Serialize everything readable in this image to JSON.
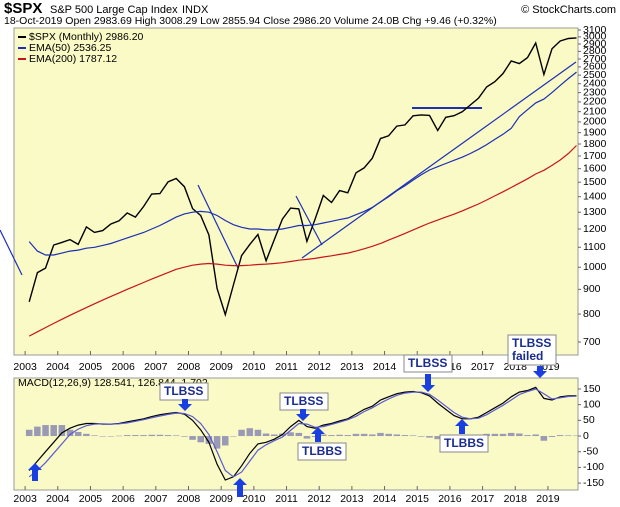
{
  "header": {
    "symbol": "$SPX",
    "name": "S&P 500 Large Cap Index",
    "exchange": "INDX",
    "copyright": "© StockCharts.com",
    "quote": "18-Oct-2019   Open 2983.69  High 3008.29  Low 2855.94  Close 2986.20  Volume 24.0B  Chg +9.46 (+0.32%)"
  },
  "chart_data": [
    {
      "type": "line",
      "log_scale": true,
      "grid": false,
      "x": [
        2003.125,
        2003.375,
        2003.625,
        2003.875,
        2004.125,
        2004.375,
        2004.625,
        2004.875,
        2005.125,
        2005.375,
        2005.625,
        2005.875,
        2006.125,
        2006.375,
        2006.625,
        2006.875,
        2007.125,
        2007.375,
        2007.625,
        2007.875,
        2008.125,
        2008.375,
        2008.625,
        2008.875,
        2009.125,
        2009.375,
        2009.625,
        2009.875,
        2010.125,
        2010.375,
        2010.625,
        2010.875,
        2011.125,
        2011.375,
        2011.625,
        2011.875,
        2012.125,
        2012.375,
        2012.625,
        2012.875,
        2013.125,
        2013.375,
        2013.625,
        2013.875,
        2014.125,
        2014.375,
        2014.625,
        2014.875,
        2015.125,
        2015.375,
        2015.625,
        2015.875,
        2016.125,
        2016.375,
        2016.625,
        2016.875,
        2017.125,
        2017.375,
        2017.625,
        2017.875,
        2018.125,
        2018.375,
        2018.625,
        2018.875,
        2019.125,
        2019.375,
        2019.625,
        2019.875
      ],
      "series": [
        {
          "name": "$SPX (Monthly) 2986.20",
          "color": "#000000",
          "values": [
            848,
            975,
            996,
            1112,
            1126,
            1141,
            1115,
            1212,
            1181,
            1191,
            1229,
            1248,
            1295,
            1270,
            1336,
            1418,
            1421,
            1503,
            1527,
            1468,
            1323,
            1280,
            1166,
            903,
            798,
            919,
            1057,
            1115,
            1169,
            1031,
            1141,
            1258,
            1326,
            1321,
            1131,
            1258,
            1408,
            1362,
            1441,
            1426,
            1569,
            1606,
            1682,
            1848,
            1872,
            1960,
            1972,
            2059,
            2068,
            2063,
            1920,
            2044,
            2060,
            2099,
            2168,
            2239,
            2363,
            2423,
            2519,
            2674,
            2641,
            2718,
            2914,
            2507,
            2834,
            2942,
            2977,
            2986
          ]
        },
        {
          "name": "EMA(50) 2536.25",
          "color": "#1c2fb5",
          "values": [
            1130,
            1080,
            1060,
            1060,
            1070,
            1080,
            1085,
            1095,
            1100,
            1110,
            1120,
            1135,
            1150,
            1165,
            1180,
            1200,
            1220,
            1245,
            1270,
            1290,
            1300,
            1305,
            1300,
            1280,
            1250,
            1225,
            1210,
            1200,
            1200,
            1195,
            1195,
            1200,
            1210,
            1220,
            1220,
            1225,
            1235,
            1245,
            1255,
            1265,
            1285,
            1305,
            1330,
            1365,
            1400,
            1440,
            1475,
            1515,
            1555,
            1590,
            1615,
            1640,
            1665,
            1690,
            1720,
            1755,
            1795,
            1840,
            1885,
            1940,
            2050,
            2120,
            2190,
            2230,
            2300,
            2380,
            2460,
            2536
          ]
        },
        {
          "name": "EMA(200) 1787.12",
          "color": "#c8141e",
          "values": [
            720,
            735,
            750,
            765,
            780,
            795,
            810,
            825,
            840,
            855,
            870,
            885,
            900,
            915,
            930,
            945,
            960,
            975,
            990,
            1000,
            1010,
            1015,
            1018,
            1015,
            1010,
            1008,
            1008,
            1010,
            1013,
            1015,
            1018,
            1022,
            1028,
            1034,
            1038,
            1043,
            1050,
            1056,
            1063,
            1070,
            1080,
            1092,
            1105,
            1120,
            1138,
            1156,
            1175,
            1195,
            1215,
            1235,
            1252,
            1270,
            1288,
            1308,
            1330,
            1352,
            1378,
            1405,
            1433,
            1463,
            1493,
            1525,
            1560,
            1588,
            1625,
            1668,
            1720,
            1787
          ]
        }
      ],
      "xlim": [
        2002.66,
        2019.92
      ],
      "xticks": [
        2003,
        2004,
        2005,
        2006,
        2007,
        2008,
        2009,
        2010,
        2011,
        2012,
        2013,
        2014,
        2015,
        2016,
        2017,
        2018,
        2019
      ],
      "ylim": [
        658,
        3130
      ],
      "yticks": [
        700,
        800,
        900,
        1000,
        1100,
        1200,
        1300,
        1400,
        1500,
        1600,
        1700,
        1800,
        1900,
        2000,
        2100,
        2200,
        2300,
        2400,
        2500,
        2600,
        2700,
        2800,
        2900,
        3000,
        3100
      ]
    },
    {
      "type": "line",
      "grid": false,
      "label": "MACD(12,26,9) 128.541, 126.844, 1.702",
      "x": [
        2003.125,
        2003.375,
        2003.625,
        2003.875,
        2004.125,
        2004.375,
        2004.625,
        2004.875,
        2005.125,
        2005.375,
        2005.625,
        2005.875,
        2006.125,
        2006.375,
        2006.625,
        2006.875,
        2007.125,
        2007.375,
        2007.625,
        2007.875,
        2008.125,
        2008.375,
        2008.625,
        2008.875,
        2009.125,
        2009.375,
        2009.625,
        2009.875,
        2010.125,
        2010.375,
        2010.625,
        2010.875,
        2011.125,
        2011.375,
        2011.625,
        2011.875,
        2012.125,
        2012.375,
        2012.625,
        2012.875,
        2013.125,
        2013.375,
        2013.625,
        2013.875,
        2014.125,
        2014.375,
        2014.625,
        2014.875,
        2015.125,
        2015.375,
        2015.625,
        2015.875,
        2016.125,
        2016.375,
        2016.625,
        2016.875,
        2017.125,
        2017.375,
        2017.625,
        2017.875,
        2018.125,
        2018.375,
        2018.625,
        2018.875,
        2019.125,
        2019.375,
        2019.625,
        2019.875
      ],
      "series": [
        {
          "type": "bar",
          "color": "#9a9ab4",
          "values": [
            20,
            30,
            35,
            35,
            35,
            20,
            13,
            7,
            2,
            -1,
            0,
            1,
            3,
            3,
            3,
            4,
            4,
            3,
            2,
            -2,
            -12,
            -20,
            -25,
            -40,
            -30,
            0,
            20,
            25,
            20,
            8,
            5,
            8,
            12,
            10,
            -8,
            -3,
            5,
            3,
            4,
            3,
            7,
            7,
            5,
            10,
            7,
            5,
            3,
            2,
            -2,
            -5,
            -10,
            -10,
            -10,
            -5,
            0,
            3,
            7,
            7,
            7,
            10,
            8,
            3,
            5,
            -15,
            -3,
            3,
            2,
            1.702
          ]
        },
        {
          "type": "line",
          "color": "#000000",
          "values": [
            -110,
            -80,
            -50,
            -20,
            10,
            25,
            35,
            40,
            40,
            38,
            38,
            40,
            45,
            50,
            55,
            62,
            68,
            72,
            75,
            70,
            50,
            20,
            -20,
            -90,
            -140,
            -130,
            -95,
            -55,
            -25,
            -20,
            -10,
            5,
            30,
            50,
            30,
            25,
            35,
            40,
            48,
            55,
            70,
            85,
            95,
            115,
            125,
            135,
            140,
            142,
            138,
            128,
            105,
            85,
            65,
            55,
            55,
            60,
            75,
            90,
            105,
            125,
            140,
            145,
            155,
            120,
            115,
            125,
            128,
            128.541
          ]
        },
        {
          "type": "line",
          "color": "#5a5ad2",
          "values": [
            -130,
            -110,
            -85,
            -55,
            -25,
            5,
            22,
            33,
            38,
            39,
            38,
            39,
            42,
            47,
            52,
            58,
            64,
            69,
            73,
            72,
            62,
            40,
            5,
            -50,
            -110,
            -130,
            -115,
            -80,
            -45,
            -28,
            -15,
            -3,
            18,
            40,
            38,
            28,
            30,
            37,
            44,
            52,
            63,
            78,
            90,
            105,
            118,
            130,
            137,
            140,
            140,
            133,
            115,
            95,
            75,
            60,
            55,
            57,
            68,
            83,
            98,
            115,
            132,
            142,
            150,
            135,
            118,
            122,
            126,
            126.844
          ]
        }
      ],
      "annotations": [
        [
          "TLBSS"
        ],
        [
          "TLBSS"
        ],
        [
          "TLBSS"
        ],
        [
          "TLBSS",
          "failed"
        ],
        [
          "TLBBS"
        ],
        [
          "TLBBS"
        ]
      ],
      "xlim": [
        2002.66,
        2019.92
      ],
      "xticks": [
        2003,
        2004,
        2005,
        2006,
        2007,
        2008,
        2009,
        2010,
        2011,
        2012,
        2013,
        2014,
        2015,
        2016,
        2017,
        2018,
        2019
      ],
      "ylim": [
        -172,
        185
      ],
      "yticks": [
        -150,
        -100,
        -50,
        0,
        50,
        100,
        150
      ]
    }
  ]
}
